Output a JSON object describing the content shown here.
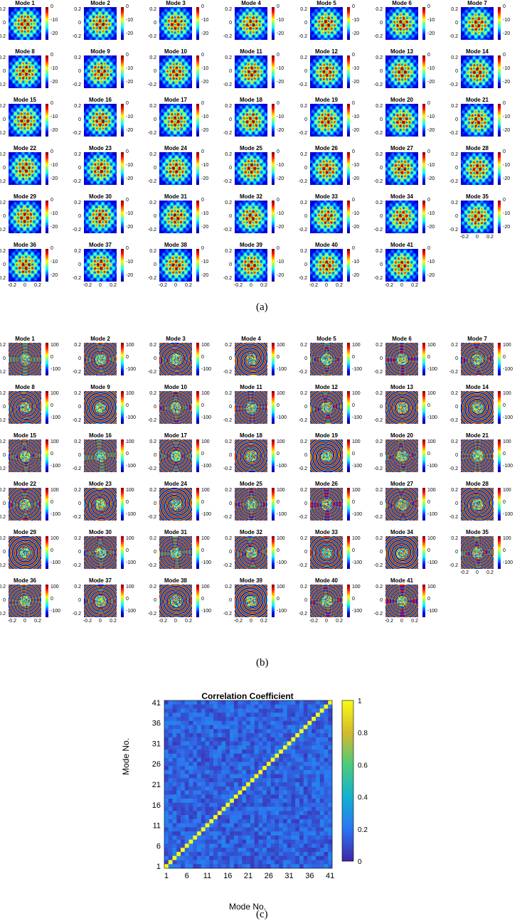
{
  "panel_a": {
    "label": "(a)",
    "mode_titles": [
      "Mode 1",
      "Mode 2",
      "Mode 3",
      "Mode 4",
      "Mode 5",
      "Mode 6",
      "Mode 7",
      "Mode 8",
      "Mode 9",
      "Mode 10",
      "Mode 11",
      "Mode 12",
      "Mode 13",
      "Mode 14",
      "Mode 15",
      "Mode 16",
      "Mode 17",
      "Mode 18",
      "Mode 19",
      "Mode 20",
      "Mode 21",
      "Mode 22",
      "Mode 23",
      "Mode 24",
      "Mode 25",
      "Mode 26",
      "Mode 27",
      "Mode 28",
      "Mode 29",
      "Mode 30",
      "Mode 31",
      "Mode 32",
      "Mode 33",
      "Mode 34",
      "Mode 35",
      "Mode 36",
      "Mode 37",
      "Mode 38",
      "Mode 39",
      "Mode 40",
      "Mode 41"
    ],
    "ytick_labels": [
      "0.2",
      "0",
      "-0.2"
    ],
    "xtick_labels": [
      "-0.2",
      "0",
      "0.2"
    ],
    "colorbar_ticks": [
      "0",
      "-10",
      "-20"
    ],
    "colorbar_range": [
      -20,
      0
    ],
    "colormap": "jet"
  },
  "panel_b": {
    "label": "(b)",
    "mode_titles": [
      "Mode 1",
      "Mode 2",
      "Mode 3",
      "Mode 4",
      "Mode 5",
      "Mode 6",
      "Mode 7",
      "Mode 8",
      "Mode 9",
      "Mode 10",
      "Mode 11",
      "Mode 12",
      "Mode 13",
      "Mode 14",
      "Mode 15",
      "Mode 16",
      "Mode 17",
      "Mode 18",
      "Mode 19",
      "Mode 20",
      "Mode 21",
      "Mode 22",
      "Mode 23",
      "Mode 24",
      "Mode 25",
      "Mode 26",
      "Mode 27",
      "Mode 28",
      "Mode 29",
      "Mode 30",
      "Mode 31",
      "Mode 32",
      "Mode 33",
      "Mode 34",
      "Mode 35",
      "Mode 36",
      "Mode 37",
      "Mode 38",
      "Mode 39",
      "Mode 40",
      "Mode 41"
    ],
    "ytick_labels": [
      "0.2",
      "0",
      "-0.2"
    ],
    "xtick_labels": [
      "-0.2",
      "0",
      "0.2"
    ],
    "colorbar_ticks": [
      "100",
      "0",
      "-100"
    ],
    "colorbar_range": [
      -180,
      180
    ],
    "colormap": "jet"
  },
  "panel_c": {
    "label": "(c)",
    "chart_data": {
      "type": "heatmap",
      "title": "Correlation Coefficient",
      "xlabel": "Mode No.",
      "ylabel": "Mode No.",
      "x_ticks": [
        "1",
        "6",
        "11",
        "16",
        "21",
        "26",
        "31",
        "36",
        "41"
      ],
      "y_ticks": [
        "1",
        "6",
        "11",
        "16",
        "21",
        "26",
        "31",
        "36",
        "41"
      ],
      "size": 41,
      "diagonal_value": 1,
      "off_diagonal_typical_range": [
        0.05,
        0.25
      ],
      "colorbar_ticks": [
        "1",
        "0.8",
        "0.6",
        "0.4",
        "0.2",
        "0"
      ],
      "colorbar_range": [
        0,
        1
      ],
      "colormap": "parula",
      "grid": false
    }
  }
}
